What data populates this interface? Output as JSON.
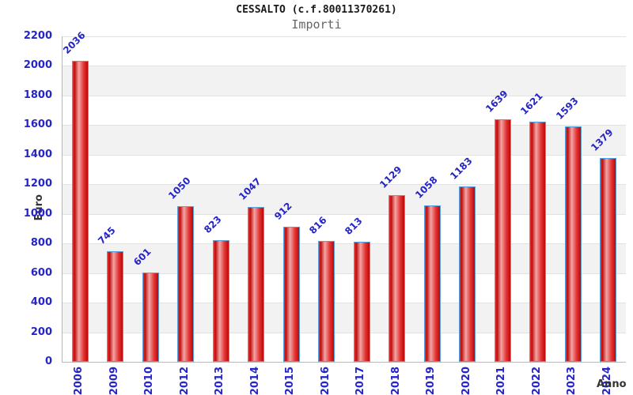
{
  "header": {
    "title": "CESSALTO (c.f.80011370261)",
    "subtitle": "Importi"
  },
  "chart_data": {
    "type": "bar",
    "title": "CESSALTO (c.f.80011370261)",
    "subtitle": "Importi",
    "xlabel": "Anno",
    "ylabel": "Euro",
    "categories": [
      "2006",
      "2009",
      "2010",
      "2012",
      "2013",
      "2014",
      "2015",
      "2016",
      "2017",
      "2018",
      "2019",
      "2020",
      "2021",
      "2022",
      "2023",
      "2024"
    ],
    "values": [
      2036,
      745,
      601,
      1050,
      823,
      1047,
      912,
      816,
      813,
      1129,
      1058,
      1183,
      1639,
      1621,
      1593,
      1379
    ],
    "ylim": [
      0,
      2200
    ],
    "ytick_step": 200,
    "grid": "horizontal-bands-alternating",
    "legend": "none",
    "value_labels": "above-bars-rotated-45",
    "colors": {
      "tick_label": "#2525c8",
      "value_label": "#2525c8",
      "bar_border": "#55a0dd",
      "bar_dark": "#bf0d0d",
      "bar_mid": "#e43535",
      "bar_light": "#f2a6a6",
      "band_gray": "#f2f2f2",
      "band_white": "#ffffff",
      "gridline": "#e2e2e2",
      "axis_line": "#b8b8b8",
      "title_color": "#1a1a1a",
      "subtitle_color": "#666666",
      "axis_title_color": "#333333"
    }
  }
}
